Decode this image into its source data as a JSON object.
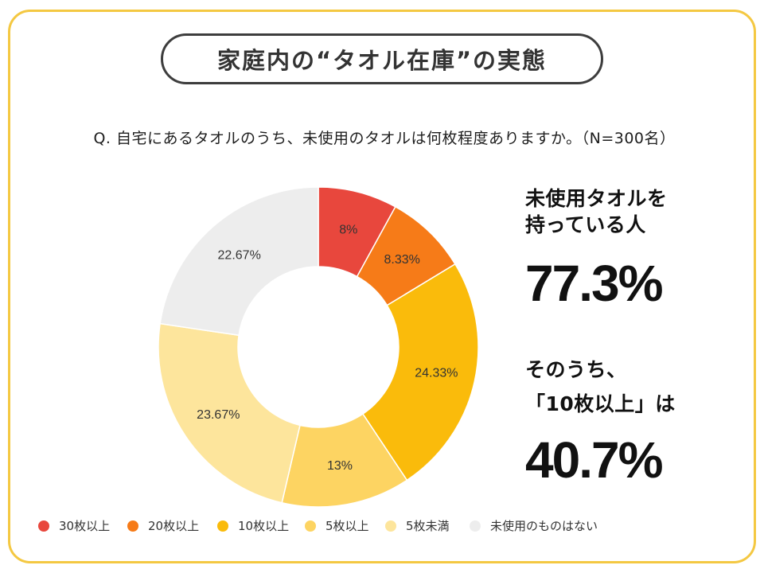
{
  "title": "家庭内の“タオル在庫”の実態",
  "question": "Q. 自宅にあるタオルのうち、未使用のタオルは何枚程度ありますか。（N=300名）",
  "highlight": {
    "owners_line1": "未使用タオルを",
    "owners_line2": "持っている人",
    "owners_value": "77.3%",
    "subset_line1": "そのうち、",
    "subset_line2": "「10枚以上」は",
    "subset_value": "40.7%"
  },
  "colors": {
    "frame": "#f4c842",
    "title_border": "#3d3d3d"
  },
  "chart_data": {
    "type": "pie",
    "categories": [
      "30枚以上",
      "20枚以上",
      "10枚以上",
      "5枚以上",
      "5枚未満",
      "未使用のものはない"
    ],
    "values": [
      8,
      8.33,
      24.33,
      13,
      23.67,
      22.67
    ],
    "labels": [
      "8%",
      "8.33%",
      "24.33%",
      "13%",
      "23.67%",
      "22.67%"
    ],
    "colors": [
      "#e8473d",
      "#f67b18",
      "#fabb0b",
      "#fdd462",
      "#fde59c",
      "#ededed"
    ],
    "legend_position": "bottom"
  }
}
